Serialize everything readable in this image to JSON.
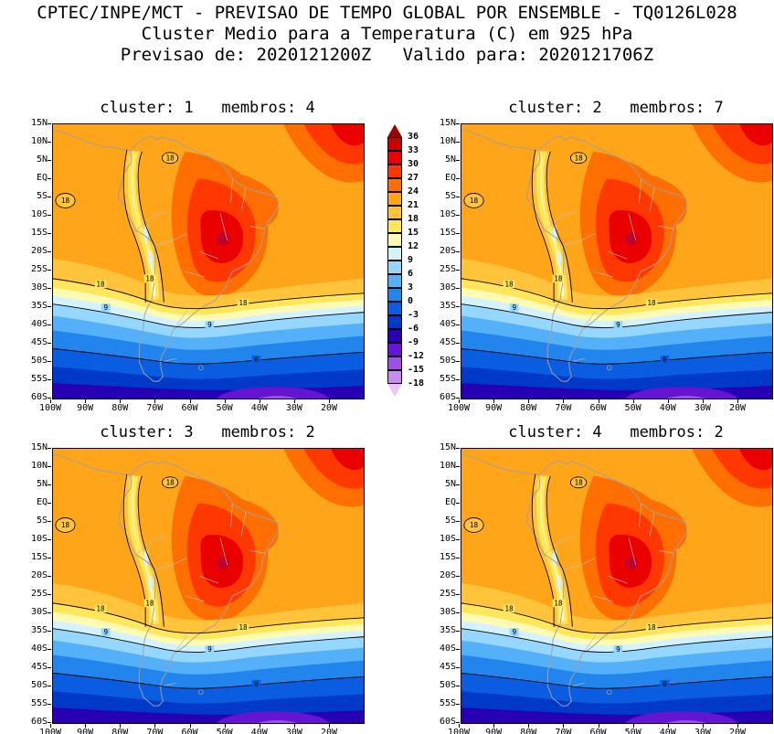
{
  "header": {
    "line1": "CPTEC/INPE/MCT - PREVISAO DE TEMPO GLOBAL POR ENSEMBLE - TQ0126L028",
    "line2": "Cluster Medio para a Temperatura (C) em 925 hPa",
    "line3": "Previsao de: 2020121200Z   Valido para: 2020121706Z"
  },
  "panels": [
    {
      "title": "cluster: 1   membros: 4"
    },
    {
      "title": "cluster: 2   membros: 7"
    },
    {
      "title": "cluster: 3   membros: 2"
    },
    {
      "title": "cluster: 4   membros: 2"
    }
  ],
  "axes": {
    "lat": [
      "15N",
      "10N",
      "5N",
      "EQ",
      "5S",
      "10S",
      "15S",
      "20S",
      "25S",
      "30S",
      "35S",
      "40S",
      "45S",
      "50S",
      "55S",
      "60S"
    ],
    "lon": [
      "100W",
      "90W",
      "80W",
      "70W",
      "60W",
      "50W",
      "40W",
      "30W",
      "20W"
    ]
  },
  "legend": {
    "labels": [
      "36",
      "33",
      "30",
      "27",
      "24",
      "21",
      "18",
      "15",
      "12",
      "9",
      "6",
      "3",
      "0",
      "-3",
      "-6",
      "-9",
      "-12",
      "-15",
      "-18"
    ],
    "colors": [
      "#960000",
      "#c80000",
      "#eb0000",
      "#ff3700",
      "#ff6e00",
      "#ffa519",
      "#ffc33c",
      "#ffe65a",
      "#fffbb4",
      "#d4f2ff",
      "#96d7ff",
      "#55b0fa",
      "#2285ee",
      "#0a5ce1",
      "#0038c8",
      "#2800b4",
      "#6414d2",
      "#9b50e6",
      "#c88cf0",
      "#e6c8fa"
    ]
  },
  "contours": {
    "label_18": "18",
    "label_9": "9",
    "label_0": "0"
  },
  "chart_data": {
    "type": "heatmap",
    "subtype": "filled-contour temperature map (GrADS ensemble cluster means)",
    "title": "Cluster Medio para a Temperatura (C) em 925 hPa",
    "institution": "CPTEC/INPE/MCT",
    "product": "PREVISAO DE TEMPO GLOBAL POR ENSEMBLE",
    "model_id": "TQ0126L028",
    "forecast_init": "2020121200Z",
    "forecast_valid": "2020121706Z",
    "units": "C",
    "level_hpa": 925,
    "panels": [
      {
        "cluster": 1,
        "membros": 4
      },
      {
        "cluster": 2,
        "membros": 7
      },
      {
        "cluster": 3,
        "membros": 2
      },
      {
        "cluster": 4,
        "membros": 2
      }
    ],
    "x_axis": {
      "tick_labels": [
        "100W",
        "90W",
        "80W",
        "70W",
        "60W",
        "50W",
        "40W",
        "30W",
        "20W"
      ],
      "range": [
        "100W",
        "~13W"
      ]
    },
    "y_axis": {
      "tick_labels": [
        "15N",
        "10N",
        "5N",
        "EQ",
        "5S",
        "10S",
        "15S",
        "20S",
        "25S",
        "30S",
        "35S",
        "40S",
        "45S",
        "50S",
        "55S",
        "60S"
      ],
      "range": [
        "15N",
        "60S"
      ]
    },
    "colorbar_levels_c": [
      36,
      33,
      30,
      27,
      24,
      21,
      18,
      15,
      12,
      9,
      6,
      3,
      0,
      -3,
      -6,
      -9,
      -12,
      -15,
      -18
    ],
    "contour_interval_c": 3,
    "labeled_contours_c": [
      18,
      9,
      0
    ],
    "legend_position": "vertical bar between the two top panels",
    "grid": false,
    "field_description": "All four clusters: warm core 27-33C over central Brazil/Amazon, orange 21-27C over most of tropical South America, cool 12-18C tongue along the Andes, temperatures decreasing southward over the Southern Ocean through 9, 6, 3 and 0C bands to below -6C near 60S with a -9 to -15C purple pocket in the far South Atlantic; small 27-33C warm patch at the northeast map corner"
  }
}
